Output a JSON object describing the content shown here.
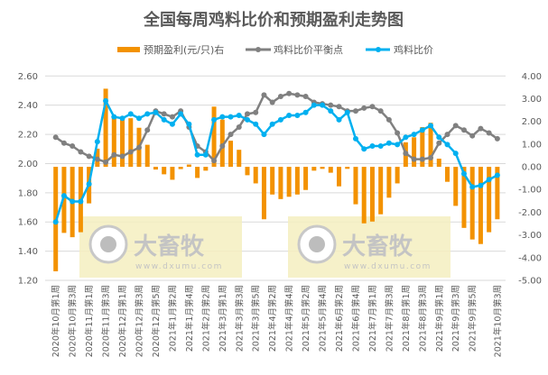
{
  "chart_data": {
    "type": "bar+line",
    "title": "全国每周鸡料比价和预期盈利走势图",
    "legend_position": "top",
    "grid": true,
    "watermark": {
      "text": "大畜牧",
      "url": "www.dxumu.com"
    },
    "categories": [
      "2020年10月第1周",
      "2020年10月第2周",
      "2020年10月第3周",
      "2020年10月第4周",
      "2020年11月第1周",
      "2020年11月第2周",
      "2020年11月第3周",
      "2020年11月第4周",
      "2020年12月第1周",
      "2020年12月第2周",
      "2020年12月第3周",
      "2020年12月第4周",
      "2020年12月第5周",
      "2021年1月第1周",
      "2021年1月第2周",
      "2021年1月第3周",
      "2021年1月第4周",
      "2021年2月第1周",
      "2021年2月第2周",
      "2021年2月第4周",
      "2021年3月第1周",
      "2021年3月第2周",
      "2021年3月第3周",
      "2021年3月第4周",
      "2021年3月第5周",
      "2021年4月第1周",
      "2021年4月第2周",
      "2021年4月第3周",
      "2021年4月第4周",
      "2021年5月第1周",
      "2021年5月第2周",
      "2021年5月第3周",
      "2021年5月第4周",
      "2021年6月第1周",
      "2021年6月第2周",
      "2021年6月第3周",
      "2021年6月第4周",
      "2021年6月第5周",
      "2021年7月第1周",
      "2021年7月第2周",
      "2021年7月第3周",
      "2021年7月第4周",
      "2021年8月第1周",
      "2021年8月第2周",
      "2021年8月第3周",
      "2021年8月第4周",
      "2021年9月第1周",
      "2021年9月第2周",
      "2021年9月第3周",
      "2021年9月第4周",
      "2021年9月第5周",
      "2021年10月第1周",
      "2021年10月第2周",
      "2021年10月第3周"
    ],
    "tick_labels": [
      "2020年10月第1周",
      "2020年10月第3周",
      "2020年11月第1周",
      "2020年11月第3周",
      "2020年12月第1周",
      "2020年12月第3周",
      "2020年12月第5周",
      "2021年1月第2周",
      "2021年1月第4周",
      "2021年2月第2周",
      "2021年3月第1周",
      "2021年3月第3周",
      "2021年3月第5周",
      "2021年4月第2周",
      "2021年4月第4周",
      "2021年5月第2周",
      "2021年5月第4周",
      "2021年6月第2周",
      "2021年6月第4周",
      "2021年7月第1周",
      "2021年7月第3周",
      "2021年8月第1周",
      "2021年8月第3周",
      "2021年9月第1周",
      "2021年9月第3周",
      "2021年9月第5周",
      "2021年10月第3周"
    ],
    "y_left": {
      "ylim": [
        1.2,
        2.6
      ],
      "ticks": [
        "1.20",
        "1.40",
        "1.60",
        "1.80",
        "2.00",
        "2.20",
        "2.40",
        "2.60"
      ]
    },
    "y_right": {
      "ylim": [
        -5,
        4
      ],
      "ticks": [
        "-5.00",
        "-4.00",
        "-3.00",
        "-2.00",
        "-1.00",
        "0.00",
        "1.00",
        "2.00",
        "3.00",
        "4.00"
      ]
    },
    "series": [
      {
        "name": "预期盈利(元/只)右",
        "type": "bar",
        "axis": "right",
        "color": "#F39200",
        "values": [
          -4.6,
          -2.91,
          -3.1,
          -2.88,
          -1.61,
          0.8,
          3.44,
          2.18,
          2.12,
          2.14,
          1.72,
          0.97,
          -0.12,
          -0.33,
          -0.57,
          -0.1,
          0.1,
          -0.49,
          -0.17,
          2.65,
          2.08,
          1.15,
          0.75,
          -0.37,
          -0.73,
          -2.31,
          -1.22,
          -1.42,
          -1.32,
          -1.22,
          -1.02,
          -0.17,
          -0.09,
          -0.26,
          -0.86,
          -0.09,
          -1.65,
          -2.49,
          -2.41,
          -2.09,
          -1.36,
          -0.73,
          1.08,
          1.3,
          1.75,
          1.94,
          0.36,
          -0.66,
          -1.72,
          -2.69,
          -3.2,
          -3.4,
          -2.88,
          -2.31
        ]
      },
      {
        "name": "鸡料比价平衡点",
        "type": "line",
        "axis": "left",
        "color": "#808080",
        "values": [
          2.18,
          2.14,
          2.12,
          2.08,
          2.05,
          2.03,
          2.01,
          2.06,
          2.05,
          2.08,
          2.11,
          2.23,
          2.36,
          2.34,
          2.32,
          2.36,
          2.25,
          2.12,
          2.08,
          2.02,
          2.12,
          2.2,
          2.25,
          2.34,
          2.35,
          2.47,
          2.42,
          2.46,
          2.48,
          2.47,
          2.46,
          2.42,
          2.41,
          2.4,
          2.39,
          2.36,
          2.36,
          2.38,
          2.39,
          2.36,
          2.3,
          2.21,
          2.07,
          2.03,
          2.03,
          2.04,
          2.14,
          2.2,
          2.26,
          2.23,
          2.19,
          2.24,
          2.21,
          2.17
        ]
      },
      {
        "name": "鸡料比价",
        "type": "line",
        "axis": "left",
        "color": "#00B0F0",
        "values": [
          1.6,
          1.78,
          1.74,
          1.74,
          1.86,
          2.15,
          2.43,
          2.32,
          2.31,
          2.34,
          2.31,
          2.34,
          2.35,
          2.3,
          2.27,
          2.34,
          2.27,
          2.06,
          2.06,
          2.3,
          2.32,
          2.32,
          2.33,
          2.3,
          2.27,
          2.2,
          2.27,
          2.3,
          2.33,
          2.33,
          2.35,
          2.4,
          2.4,
          2.36,
          2.3,
          2.35,
          2.17,
          2.1,
          2.12,
          2.12,
          2.14,
          2.13,
          2.18,
          2.2,
          2.23,
          2.26,
          2.18,
          2.13,
          2.07,
          1.93,
          1.84,
          1.85,
          1.89,
          1.92
        ]
      }
    ]
  }
}
